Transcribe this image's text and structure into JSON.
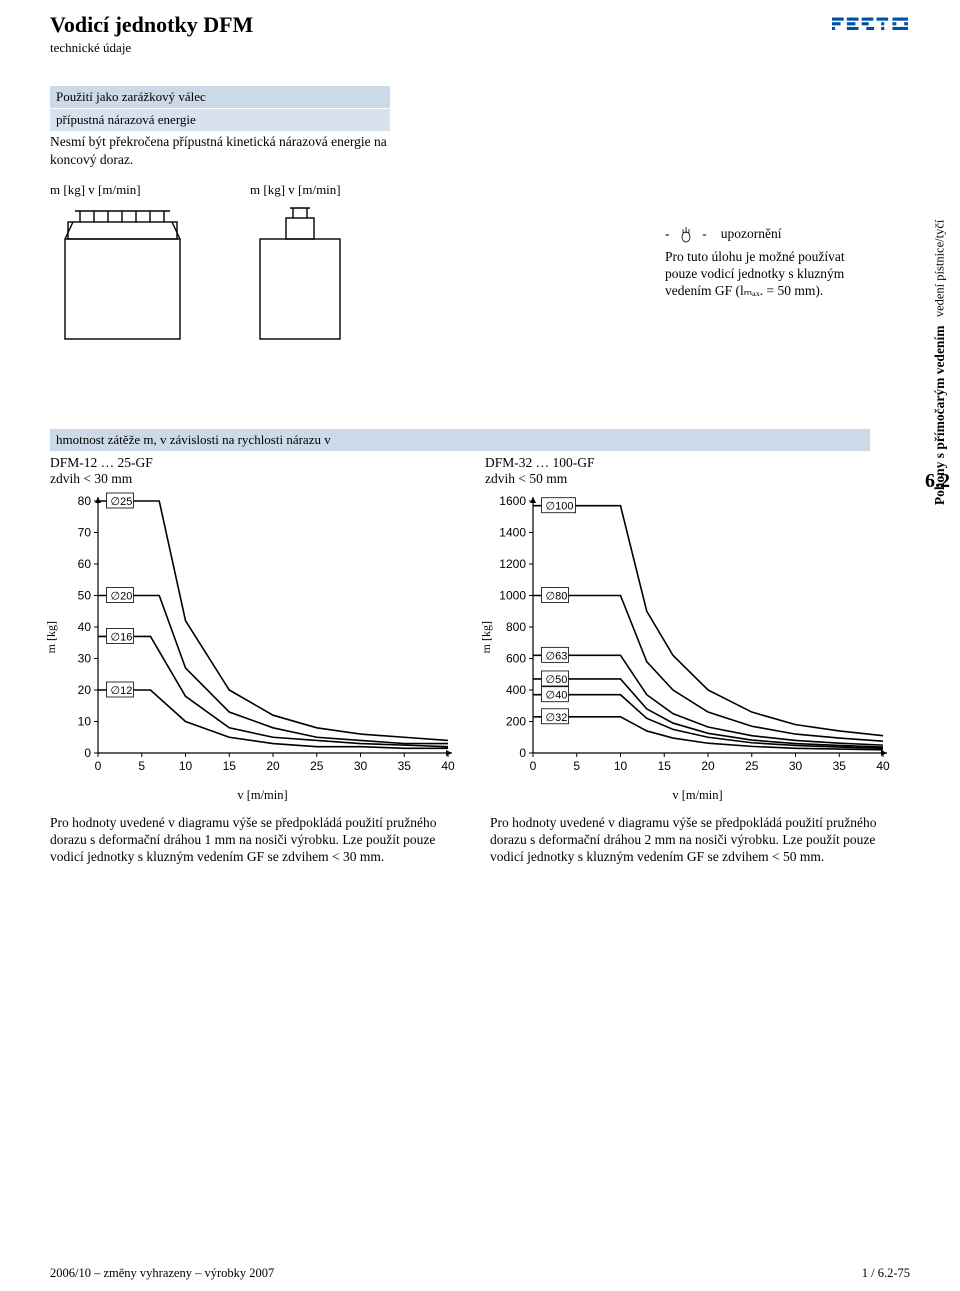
{
  "header": {
    "title": "Vodicí jednotky DFM",
    "subtitle": "technické údaje",
    "logo_color": "#0050a0",
    "logo_text": "FESTO"
  },
  "use_block": {
    "row1": "Použití jako zarážkový válec",
    "row2": "přípustná nárazová energie",
    "body": "Nesmí být překročena přípustná kinetická nárazová energie na koncový doraz."
  },
  "axis_labels": {
    "left": "m [kg] v [m/min]",
    "right": "m [kg] v [m/min]"
  },
  "note": {
    "marker": "- -",
    "title": "upozornění",
    "body": "Pro tuto úlohu je možné používat pouze vodicí jednotky s kluzným vedením GF (lₘₐₓ. = 50 mm)."
  },
  "side": {
    "cat": "Pohony s přímočarým vedením",
    "sub": "vedení pístnice/tyčí",
    "num": "6.2"
  },
  "mass_bar": "hmotnost zátěže m, v závislosti na rychlosti nárazu v",
  "chart1": {
    "title": "DFM-12 … 25-GF",
    "subtitle": "zdvih < 30 mm",
    "yticks": [
      0,
      10,
      20,
      30,
      40,
      50,
      60,
      70,
      80
    ],
    "xticks": [
      0,
      5,
      10,
      15,
      20,
      25,
      30,
      35,
      40
    ],
    "series": [
      {
        "label": "∅25",
        "flat": 80,
        "break_x": 7,
        "points": [
          [
            7,
            80
          ],
          [
            10,
            42
          ],
          [
            15,
            20
          ],
          [
            20,
            12
          ],
          [
            25,
            8
          ],
          [
            30,
            6
          ],
          [
            35,
            5
          ],
          [
            40,
            4
          ]
        ]
      },
      {
        "label": "∅20",
        "flat": 50,
        "break_x": 7,
        "points": [
          [
            7,
            50
          ],
          [
            10,
            27
          ],
          [
            15,
            13
          ],
          [
            20,
            8
          ],
          [
            25,
            5
          ],
          [
            30,
            4
          ],
          [
            35,
            3
          ],
          [
            40,
            3
          ]
        ]
      },
      {
        "label": "∅16",
        "flat": 37,
        "break_x": 6,
        "points": [
          [
            6,
            37
          ],
          [
            10,
            18
          ],
          [
            15,
            8
          ],
          [
            20,
            5
          ],
          [
            25,
            4
          ],
          [
            30,
            3
          ],
          [
            35,
            2.5
          ],
          [
            40,
            2
          ]
        ]
      },
      {
        "label": "∅12",
        "flat": 20,
        "break_x": 6,
        "points": [
          [
            6,
            20
          ],
          [
            10,
            10
          ],
          [
            15,
            5
          ],
          [
            20,
            3
          ],
          [
            25,
            2
          ],
          [
            30,
            2
          ],
          [
            35,
            1.5
          ],
          [
            40,
            1.5
          ]
        ]
      }
    ],
    "xlim": [
      0,
      40
    ],
    "ylim": [
      0,
      80
    ],
    "stroke": "#000",
    "stroke_width": 1.6
  },
  "chart2": {
    "title": "DFM-32 … 100-GF",
    "subtitle": "zdvih < 50 mm",
    "yticks": [
      0,
      200,
      400,
      600,
      800,
      1000,
      1200,
      1400,
      1600
    ],
    "xticks": [
      0,
      5,
      10,
      15,
      20,
      25,
      30,
      35,
      40
    ],
    "series": [
      {
        "label": "∅100",
        "flat": 1570,
        "break_x": 10,
        "points": [
          [
            10,
            1570
          ],
          [
            13,
            900
          ],
          [
            16,
            620
          ],
          [
            20,
            400
          ],
          [
            25,
            260
          ],
          [
            30,
            180
          ],
          [
            35,
            140
          ],
          [
            40,
            110
          ]
        ]
      },
      {
        "label": "∅80",
        "flat": 1000,
        "break_x": 10,
        "points": [
          [
            10,
            1000
          ],
          [
            13,
            580
          ],
          [
            16,
            400
          ],
          [
            20,
            260
          ],
          [
            25,
            170
          ],
          [
            30,
            120
          ],
          [
            35,
            95
          ],
          [
            40,
            75
          ]
        ]
      },
      {
        "label": "∅63",
        "flat": 620,
        "break_x": 10,
        "points": [
          [
            10,
            620
          ],
          [
            13,
            370
          ],
          [
            16,
            250
          ],
          [
            20,
            165
          ],
          [
            25,
            110
          ],
          [
            30,
            80
          ],
          [
            35,
            62
          ],
          [
            40,
            50
          ]
        ]
      },
      {
        "label": "∅50",
        "flat": 470,
        "break_x": 10,
        "points": [
          [
            10,
            470
          ],
          [
            13,
            280
          ],
          [
            16,
            190
          ],
          [
            20,
            125
          ],
          [
            25,
            82
          ],
          [
            30,
            60
          ],
          [
            35,
            48
          ],
          [
            40,
            38
          ]
        ]
      },
      {
        "label": "∅40",
        "flat": 370,
        "break_x": 10,
        "points": [
          [
            10,
            370
          ],
          [
            13,
            220
          ],
          [
            16,
            150
          ],
          [
            20,
            100
          ],
          [
            25,
            65
          ],
          [
            30,
            48
          ],
          [
            35,
            38
          ],
          [
            40,
            30
          ]
        ]
      },
      {
        "label": "∅32",
        "flat": 230,
        "break_x": 10,
        "points": [
          [
            10,
            230
          ],
          [
            13,
            140
          ],
          [
            16,
            95
          ],
          [
            20,
            62
          ],
          [
            25,
            42
          ],
          [
            30,
            30
          ],
          [
            35,
            25
          ],
          [
            40,
            20
          ]
        ]
      }
    ],
    "xlim": [
      0,
      40
    ],
    "ylim": [
      0,
      1600
    ],
    "stroke": "#000",
    "stroke_width": 1.6
  },
  "axis_names": {
    "y": "m [kg]",
    "x": "v [m/min]"
  },
  "below": {
    "p1": "Pro hodnoty uvedené v diagramu výše se předpokládá použití pružného dorazu s deformační dráhou 1 mm na nosiči výrobku. Lze použít pouze vodicí jednotky s kluzným vedením GF se zdvihem < 30 mm.",
    "p2": "Pro hodnoty uvedené v diagramu výše se předpokládá použití pružného dorazu s deformační dráhou 2 mm na nosiči výrobku. Lze použít pouze vodicí jednotky s kluzným vedením GF se zdvihem < 50 mm."
  },
  "footer": {
    "left": "2006/10 – změny vyhrazeny – výrobky 2007",
    "right": "1 / 6.2-75"
  },
  "colors": {
    "blue1": "#ccd9e8",
    "blue2": "#d8e2ee",
    "line": "#000000"
  }
}
